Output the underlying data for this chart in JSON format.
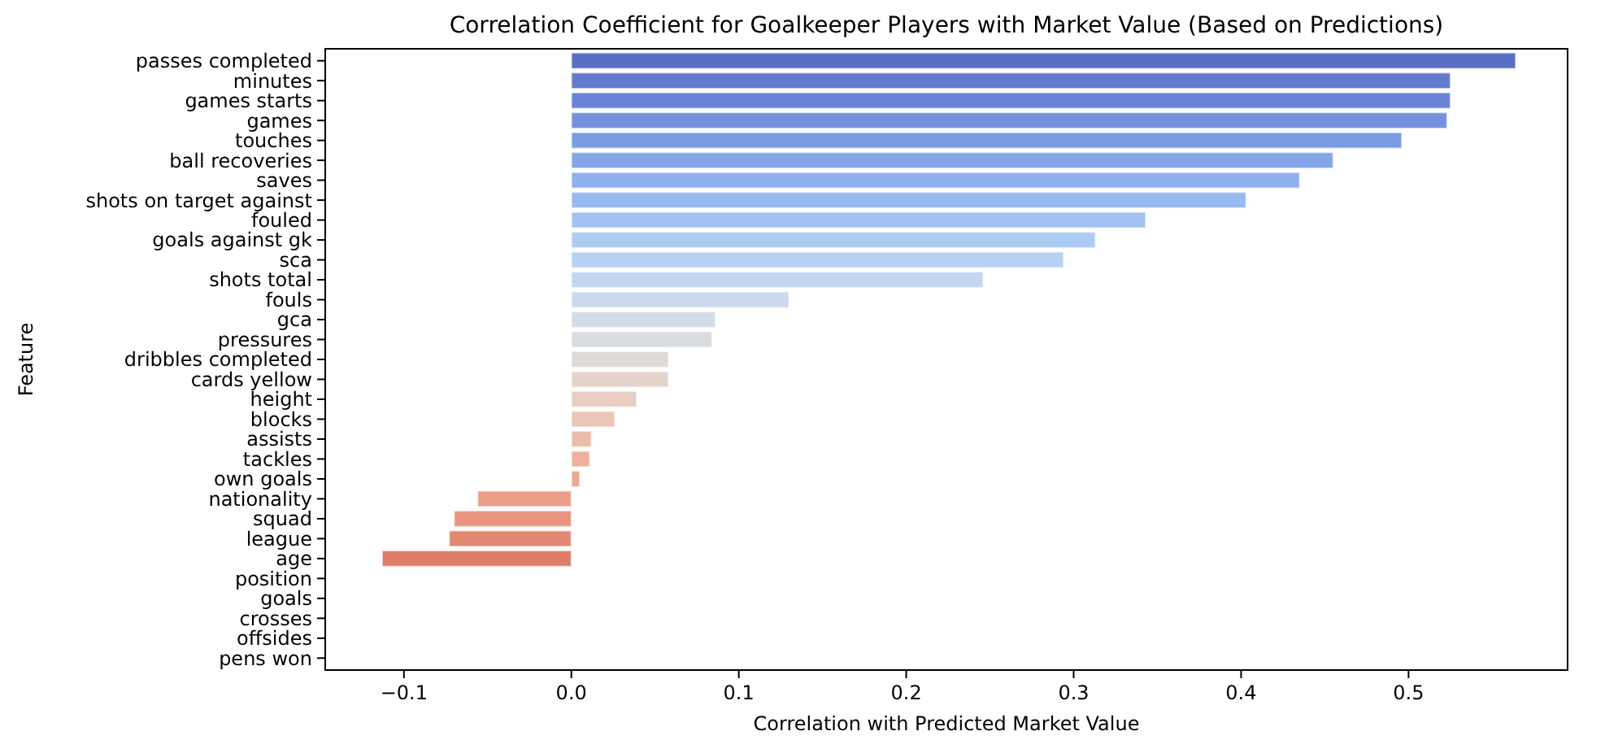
{
  "chart_data": {
    "type": "bar",
    "orientation": "horizontal",
    "title": "Correlation Coefficient for Goalkeeper Players with Market Value (Based on Predictions)",
    "xlabel": "Correlation with Predicted Market Value",
    "ylabel": "Feature",
    "categories": [
      "passes completed",
      "minutes",
      "games starts",
      "games",
      "touches",
      "ball recoveries",
      "saves",
      "shots on target against",
      "fouled",
      "goals against gk",
      "sca",
      "shots total",
      "fouls",
      "gca",
      "pressures",
      "dribbles completed",
      "cards yellow",
      "height",
      "blocks",
      "assists",
      "tackles",
      "own goals",
      "nationality",
      "squad",
      "league",
      "age",
      "position",
      "goals",
      "crosses",
      "offsides",
      "pens won"
    ],
    "values": [
      0.564,
      0.525,
      0.525,
      0.523,
      0.496,
      0.455,
      0.435,
      0.403,
      0.343,
      0.313,
      0.294,
      0.246,
      0.13,
      0.086,
      0.084,
      0.058,
      0.058,
      0.039,
      0.026,
      0.012,
      0.011,
      0.005,
      -0.056,
      -0.07,
      -0.073,
      -0.113,
      null,
      null,
      null,
      null,
      null
    ],
    "colors": [
      "#5a6ec4",
      "#6279ce",
      "#6a83d6",
      "#7390dc",
      "#7b9be2",
      "#85a5e8",
      "#8fb0ec",
      "#99baf0",
      "#a3c2f2",
      "#adcaf3",
      "#b7d1f2",
      "#c1d6f0",
      "#cad9ed",
      "#d2dbe8",
      "#d9dce1",
      "#dfd9d6",
      "#e4d4cc",
      "#e8cdc0",
      "#ebc5b5",
      "#ecbcaa",
      "#edb29e",
      "#eca893",
      "#ea9e88",
      "#e7937d",
      "#e28872",
      "#dd7d68",
      null,
      null,
      null,
      null,
      null
    ],
    "xlim": [
      -0.147,
      0.595
    ],
    "xticks": [
      {
        "value": -0.1,
        "label": "−0.1"
      },
      {
        "value": 0,
        "label": "0.0"
      },
      {
        "value": 0.1,
        "label": "0.1"
      },
      {
        "value": 0.2,
        "label": "0.2"
      },
      {
        "value": 0.3,
        "label": "0.3"
      },
      {
        "value": 0.4,
        "label": "0.4"
      },
      {
        "value": 0.5,
        "label": "0.5"
      }
    ],
    "grid": false
  }
}
